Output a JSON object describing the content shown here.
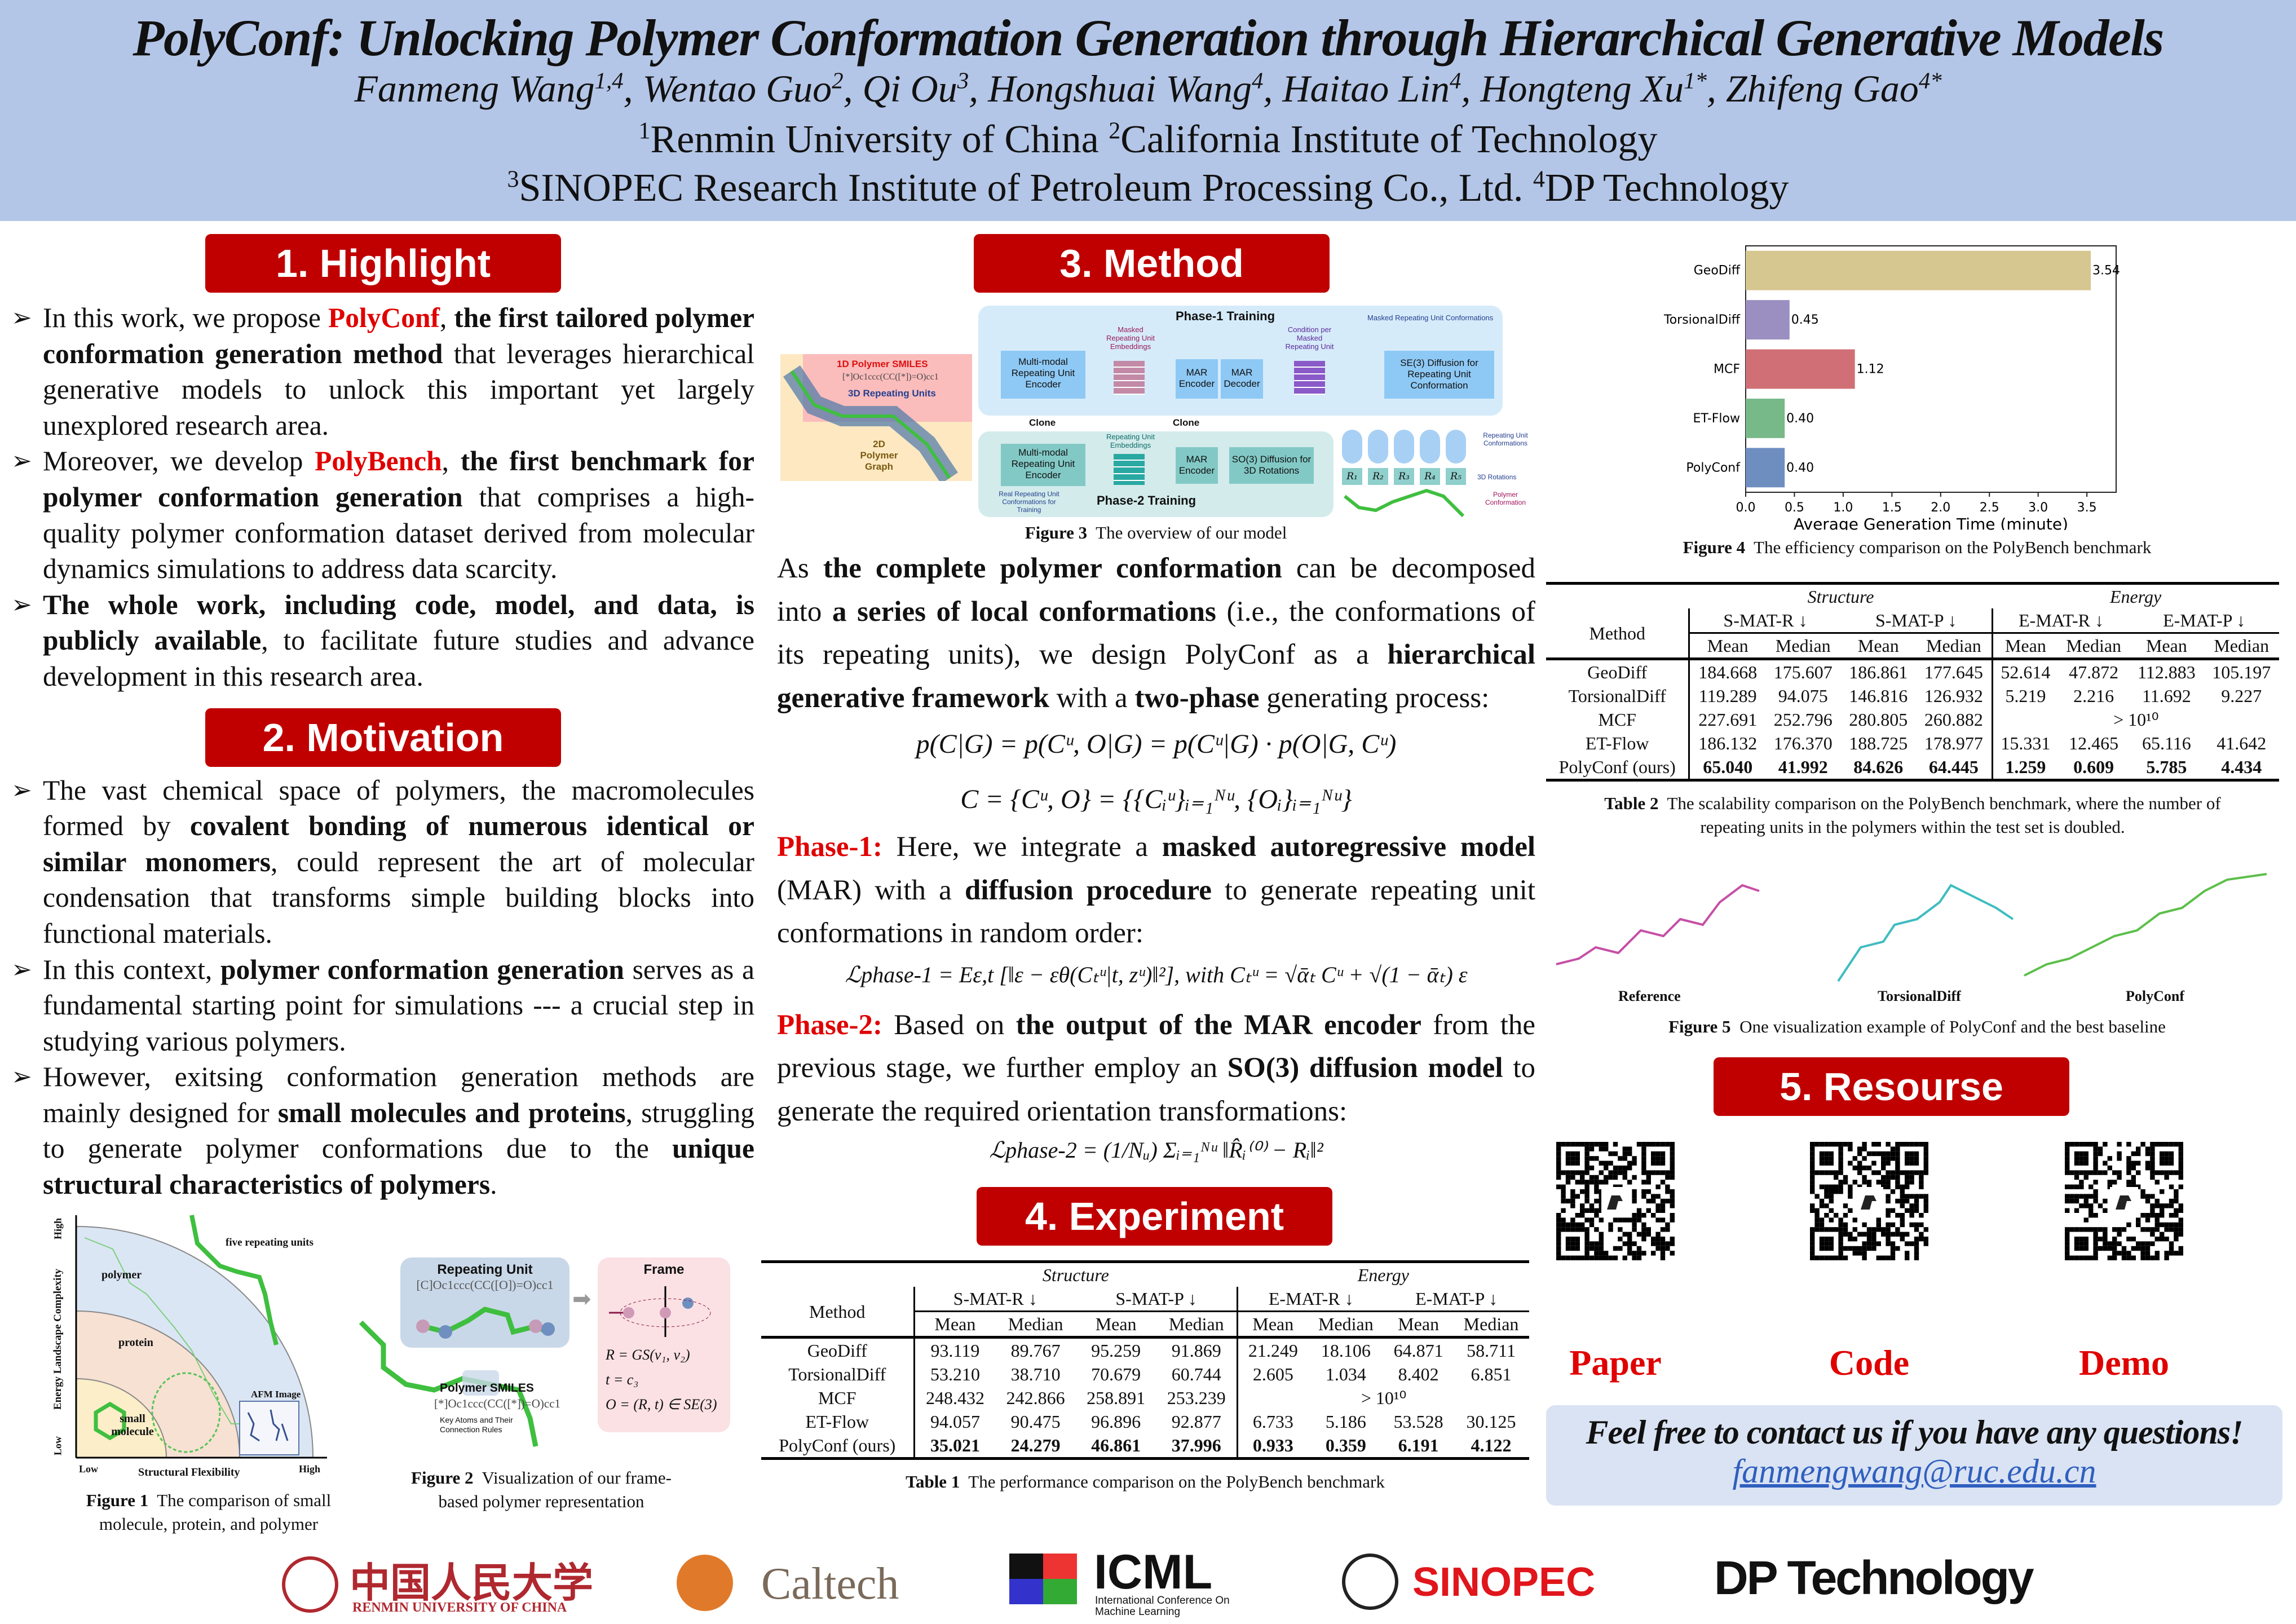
{
  "header": {
    "title": "PolyConf: Unlocking Polymer Conformation Generation through Hierarchical Generative Models",
    "authors": [
      {
        "name": "Fanmeng Wang",
        "sup": "1,4"
      },
      {
        "name": "Wentao Guo",
        "sup": "2"
      },
      {
        "name": "Qi Ou",
        "sup": "3"
      },
      {
        "name": "Hongshuai Wang",
        "sup": "4"
      },
      {
        "name": "Haitao Lin",
        "sup": "4"
      },
      {
        "name": "Hongteng Xu",
        "sup": "1*"
      },
      {
        "name": "Zhifeng Gao",
        "sup": "4*"
      }
    ],
    "aff1": [
      {
        "sup": "1",
        "name": "Renmin University of China "
      },
      {
        "sup": "2",
        "name": "California Institute of Technology"
      }
    ],
    "aff2": [
      {
        "sup": "3",
        "name": "SINOPEC Research Institute of Petroleum Processing Co., Ltd. "
      },
      {
        "sup": "4",
        "name": "DP Technology"
      }
    ]
  },
  "sections": {
    "highlight": "1. Highlight",
    "motivation": "2. Motivation",
    "method": "3. Method",
    "experiment": "4. Experiment",
    "resource": "5. Resourse"
  },
  "highlight": [
    [
      {
        "t": "In this work, we propose "
      },
      {
        "t": "PolyConf",
        "s": "r"
      },
      {
        "t": ", "
      },
      {
        "t": "the first tailored polymer conformation generation method",
        "s": "b"
      },
      {
        "t": " that leverages hierarchical generative models to unlock this important yet largely unexplored research area."
      }
    ],
    [
      {
        "t": "Moreover, we develop "
      },
      {
        "t": "PolyBench",
        "s": "r"
      },
      {
        "t": ", "
      },
      {
        "t": "the first benchmark for polymer conformation generation",
        "s": "b"
      },
      {
        "t": " that comprises a high-quality polymer conformation dataset derived from molecular dynamics simulations to address data scarcity."
      }
    ],
    [
      {
        "t": "The whole work, including code, model, and data, is publicly available",
        "s": "b"
      },
      {
        "t": ", to facilitate future studies and advance development in this research area."
      }
    ]
  ],
  "motivation": [
    [
      {
        "t": "The vast chemical space of polymers, the macromolecules formed by "
      },
      {
        "t": "covalent bonding of numerous identical or similar monomers",
        "s": "b"
      },
      {
        "t": ", could represent the art of molecular condensation that transforms simple building blocks into functional materials."
      }
    ],
    [
      {
        "t": "In this context, "
      },
      {
        "t": "polymer conformation generation",
        "s": "b"
      },
      {
        "t": " serves as a fundamental starting point for simulations --- a crucial step in studying various polymers."
      }
    ],
    [
      {
        "t": "However, exitsing conformation generation methods are mainly designed for "
      },
      {
        "t": "small molecules and proteins",
        "s": "b"
      },
      {
        "t": ", struggling to generate polymer conformations due to the "
      },
      {
        "t": "unique structural characteristics of polymers",
        "s": "b"
      },
      {
        "t": "."
      }
    ]
  ],
  "figure1": {
    "caption_label": "Figure 1",
    "caption": "The comparison of small molecule, protein, and polymer",
    "y_axis": "Energy Landscape Complexity",
    "x_axis": "Structural Flexibility",
    "low": "Low",
    "high": "High",
    "regions": [
      "small molecule",
      "protein",
      "polymer"
    ],
    "annotation": "five repeating units",
    "afm": "AFM Image"
  },
  "figure2": {
    "caption_label": "Figure 2",
    "caption": "Visualization of our frame-based polymer representation",
    "repeating_unit": "Repeating Unit",
    "ru_smiles": "[C]Oc1ccc(CC([O])=O)cc1",
    "frame": "Frame",
    "polymer_smiles": "Polymer SMILES",
    "smiles": "[*]Oc1ccc(CC([*])=O)cc1",
    "key_atoms": "Key Atoms and Their Connection Rules",
    "eq1": "R = GS(v₁, v₂)",
    "eq2": "t = c₃",
    "eq3": "O = (R, t) ∈ SE(3)"
  },
  "figure3": {
    "caption_label": "Figure 3",
    "caption": "The overview of our model",
    "phase1": "Phase-1 Training",
    "phase2": "Phase-2 Training",
    "smiles_1d": "1D Polymer SMILES",
    "smiles": "[*]Oc1ccc(CC([*])=O)cc1",
    "units_3d": "3D Repeating Units",
    "graph_2d": "2D Polymer Graph",
    "encoder": "Multi-modal Repeating Unit Encoder",
    "masked_emb": "Masked Repeating Unit Embeddings",
    "mar_enc": "MAR Encoder",
    "mar_dec": "MAR Decoder",
    "condition": "Condition per Masked Repeating Unit",
    "se3": "SE(3) Diffusion for Repeating Unit Conformation",
    "masked_conf": "Masked Repeating Unit Conformations",
    "clone": "Clone",
    "emb": "Repeating Unit Embeddings",
    "so3": "SO(3) Diffusion for 3D Rotations",
    "real_conf": "Real Repeating Unit Conformations for Training",
    "ru_conf": "Repeating Unit Conformations",
    "rot": "3D Rotations",
    "poly_conf": "Polymer Conformation",
    "r_labels": [
      "R₁",
      "R₂",
      "R₃",
      "R₄",
      "R₅"
    ]
  },
  "method": {
    "p1": [
      {
        "t": "As "
      },
      {
        "t": "the complete polymer conformation",
        "s": "b"
      },
      {
        "t": " can be decomposed into "
      },
      {
        "t": "a series of local conformations",
        "s": "b"
      },
      {
        "t": " (i.e., the conformations of its repeating units), we design PolyConf as a "
      },
      {
        "t": "hierarchical generative framework",
        "s": "b"
      },
      {
        "t": " with a "
      },
      {
        "t": "two-phase",
        "s": "b"
      },
      {
        "t": " generating process:"
      }
    ],
    "eq1": "p(C|G) = p(Cᵘ, O|G) = p(Cᵘ|G) · p(O|G, Cᵘ)",
    "eq2": "C = {Cᵘ, O} = {{Cᵢᵘ}ᵢ₌₁ᴺᵘ, {Oᵢ}ᵢ₌₁ᴺᵘ}",
    "p2": [
      {
        "t": "Phase-1:",
        "s": "r"
      },
      {
        "t": " Here, we integrate a "
      },
      {
        "t": "masked autoregressive model",
        "s": "b"
      },
      {
        "t": " (MAR) with a "
      },
      {
        "t": "diffusion procedure",
        "s": "b"
      },
      {
        "t": " to generate repeating unit conformations in random order:"
      }
    ],
    "eq3": "ℒphase-1 = Eε,t [‖ε − εθ(Cₜᵘ|t, zᵘ)‖²],   with Cₜᵘ = √ᾱₜ Cᵘ + √(1 − ᾱₜ) ε",
    "p3": [
      {
        "t": "Phase-2:",
        "s": "r"
      },
      {
        "t": " Based on "
      },
      {
        "t": "the output of the MAR encoder",
        "s": "b"
      },
      {
        "t": " from the previous stage, we further employ an "
      },
      {
        "t": "SO(3) diffusion model",
        "s": "b"
      },
      {
        "t": " to generate the required orientation transformations:"
      }
    ],
    "eq4": "ℒphase-2 = (1/Nᵤ) Σᵢ₌₁ᴺᵘ ‖R̂ᵢ⁽⁰⁾ − Rᵢ‖²"
  },
  "table1": {
    "caption_label": "Table 1",
    "caption": "The performance comparison on the PolyBench benchmark",
    "group_headers": [
      "Structure",
      "Energy"
    ],
    "method_header": "Method",
    "metrics": [
      "S-MAT-R ↓",
      "S-MAT-P ↓",
      "E-MAT-R ↓",
      "E-MAT-P ↓"
    ],
    "sub": [
      "Mean",
      "Median",
      "Mean",
      "Median",
      "Mean",
      "Median",
      "Mean",
      "Median"
    ],
    "rows": [
      {
        "method": "GeoDiff",
        "values": [
          "93.119",
          "89.767",
          "95.259",
          "91.869",
          "21.249",
          "18.106",
          "64.871",
          "58.711"
        ]
      },
      {
        "method": "TorsionalDiff",
        "values": [
          "53.210",
          "38.710",
          "70.679",
          "60.744",
          "2.605",
          "1.034",
          "8.402",
          "6.851"
        ]
      },
      {
        "method": "MCF",
        "values": [
          "248.432",
          "242.866",
          "258.891",
          "253.239"
        ],
        "energy_span": "> 10¹⁰"
      },
      {
        "method": "ET-Flow",
        "values": [
          "94.057",
          "90.475",
          "96.896",
          "92.877",
          "6.733",
          "5.186",
          "53.528",
          "30.125"
        ]
      },
      {
        "method": "PolyConf (ours)",
        "values": [
          "35.021",
          "24.279",
          "46.861",
          "37.996",
          "0.933",
          "0.359",
          "6.191",
          "4.122"
        ],
        "bold": true
      }
    ]
  },
  "table2": {
    "caption_label": "Table 2",
    "caption": "The scalability comparison on the PolyBench benchmark, where the number of repeating units in the polymers within the test set is doubled.",
    "group_headers": [
      "Structure",
      "Energy"
    ],
    "method_header": "Method",
    "metrics": [
      "S-MAT-R ↓",
      "S-MAT-P ↓",
      "E-MAT-R ↓",
      "E-MAT-P ↓"
    ],
    "sub": [
      "Mean",
      "Median",
      "Mean",
      "Median",
      "Mean",
      "Median",
      "Mean",
      "Median"
    ],
    "rows": [
      {
        "method": "GeoDiff",
        "values": [
          "184.668",
          "175.607",
          "186.861",
          "177.645",
          "52.614",
          "47.872",
          "112.883",
          "105.197"
        ]
      },
      {
        "method": "TorsionalDiff",
        "values": [
          "119.289",
          "94.075",
          "146.816",
          "126.932",
          "5.219",
          "2.216",
          "11.692",
          "9.227"
        ]
      },
      {
        "method": "MCF",
        "values": [
          "227.691",
          "252.796",
          "280.805",
          "260.882"
        ],
        "energy_span": "> 10¹⁰"
      },
      {
        "method": "ET-Flow",
        "values": [
          "186.132",
          "176.370",
          "188.725",
          "178.977",
          "15.331",
          "12.465",
          "65.116",
          "41.642"
        ]
      },
      {
        "method": "PolyConf (ours)",
        "values": [
          "65.040",
          "41.992",
          "84.626",
          "64.445",
          "1.259",
          "0.609",
          "5.785",
          "4.434"
        ],
        "bold": true
      }
    ]
  },
  "chart_data": {
    "type": "bar",
    "orientation": "horizontal",
    "categories": [
      "GeoDiff",
      "TorsionalDiff",
      "MCF",
      "ET-Flow",
      "PolyConf"
    ],
    "values": [
      3.54,
      0.45,
      1.12,
      0.4,
      0.4
    ],
    "data_labels": [
      "3.54",
      "0.45",
      "1.12",
      "0.40",
      "0.40"
    ],
    "colors": [
      "#d6c68f",
      "#9b8fc1",
      "#d07076",
      "#78b98a",
      "#6f8ec0"
    ],
    "xlabel": "Average Generation Time (minute)",
    "ylabel": "",
    "xlim": [
      0,
      3.8
    ],
    "xticks": [
      "0.0",
      "0.5",
      "1.0",
      "1.5",
      "2.0",
      "2.5",
      "3.0",
      "3.5"
    ],
    "grid": false,
    "caption_label": "Figure 4",
    "caption": "The efficiency comparison on the PolyBench benchmark"
  },
  "figure5": {
    "labels": [
      "Reference",
      "TorsionalDiff",
      "PolyConf"
    ],
    "colors": [
      "#c64fa6",
      "#3fbcc0",
      "#5cbf4a"
    ],
    "caption_label": "Figure 5",
    "caption": "One visualization example of PolyConf and the best baseline"
  },
  "resources": [
    {
      "label": "Paper"
    },
    {
      "label": "Code"
    },
    {
      "label": "Demo"
    }
  ],
  "contact": {
    "text": "Feel free to contact us if you have any questions!",
    "email": "fanmengwang@ruc.edu.cn"
  },
  "logos": {
    "ruc_cn": "中国人民大学",
    "ruc_en": "RENMIN UNIVERSITY OF CHINA",
    "caltech": "Caltech",
    "icml": "ICML",
    "icml_sub": "International Conference On Machine Learning",
    "sinopec": "SINOPEC",
    "dp": "DP Technology"
  },
  "colors": {
    "header_bg": "#b4c6e7",
    "section_red": "#c00000",
    "accent_red": "#e00000",
    "link_blue": "#2f5fbf"
  }
}
